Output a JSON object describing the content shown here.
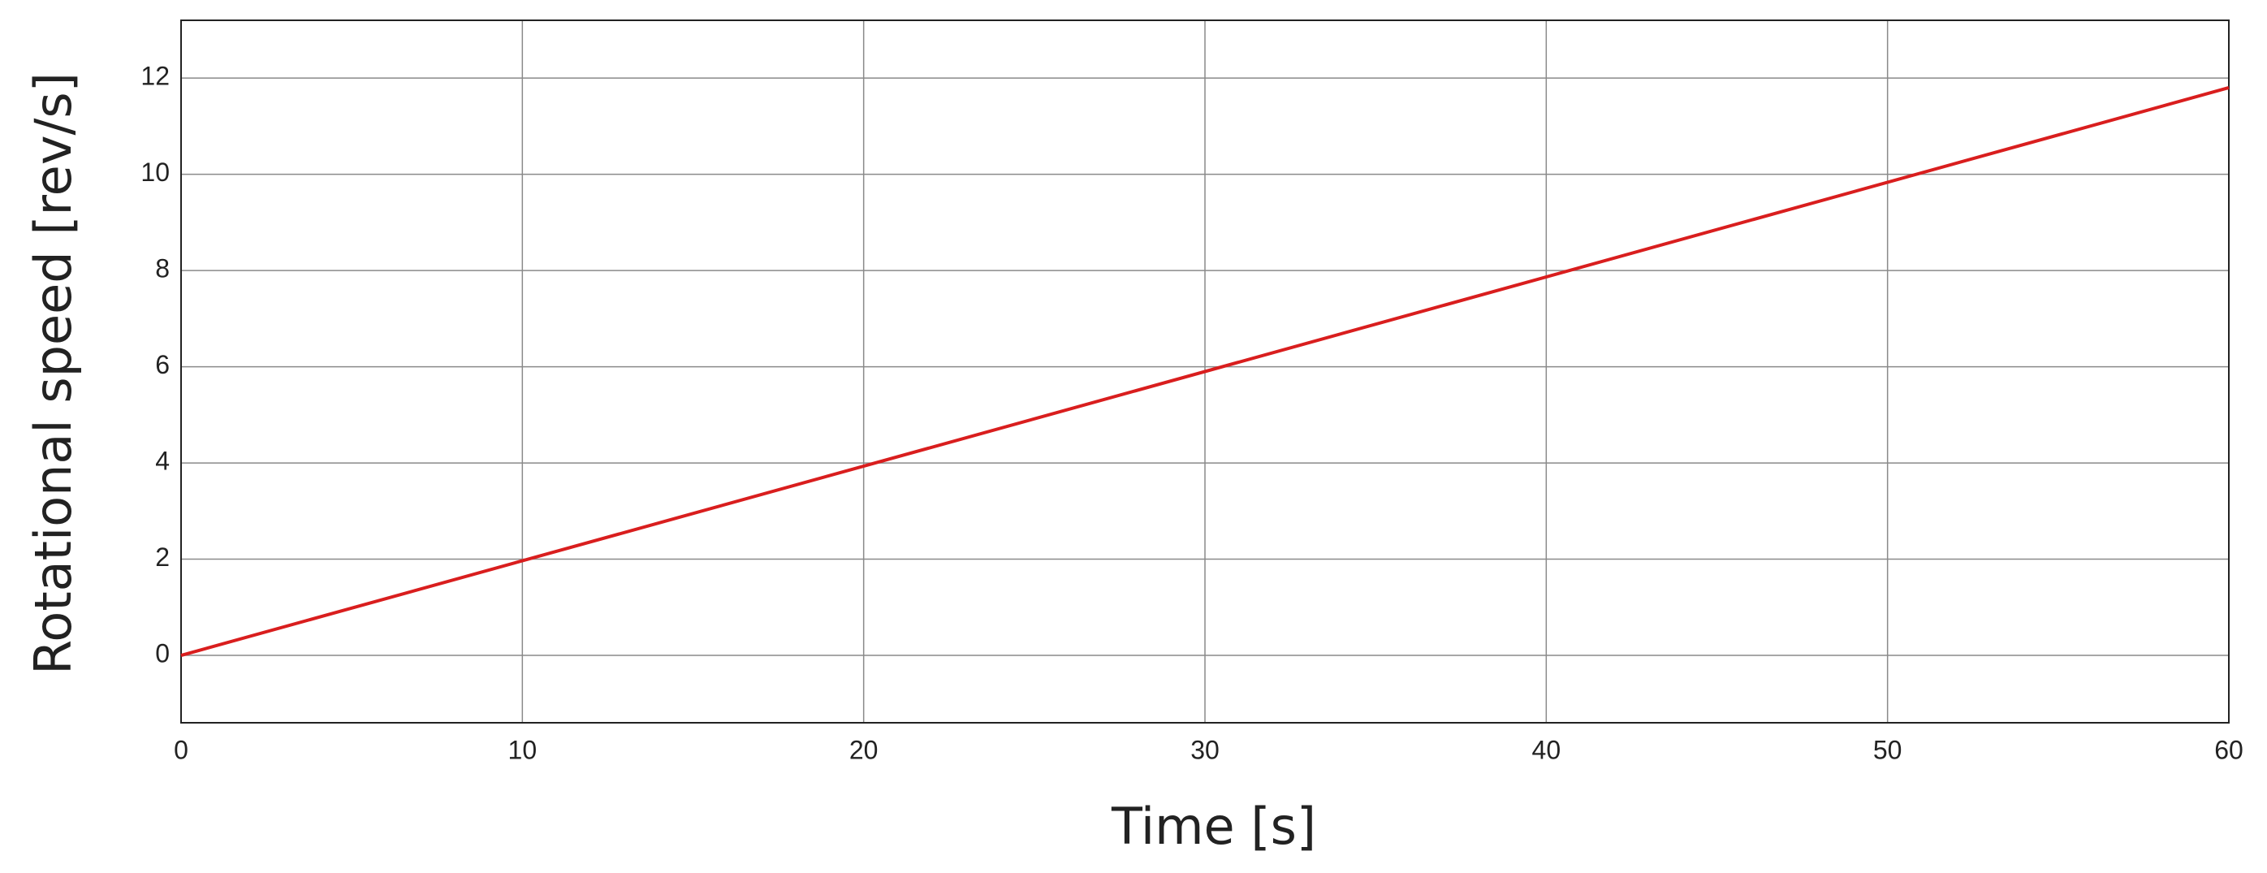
{
  "chart_data": {
    "type": "line",
    "x_label": "Time [s]",
    "y_label": "Rotational speed [rev/s]",
    "x": [
      0,
      60
    ],
    "series": [
      {
        "color": "#d91e1e",
        "values": [
          0,
          11.8
        ]
      }
    ],
    "xlim": [
      0,
      60
    ],
    "xticks": [
      0,
      10,
      20,
      30,
      40,
      50,
      60
    ],
    "ylim": [
      -1.4,
      13.2
    ],
    "yticks": [
      0,
      2,
      4,
      6,
      8,
      10,
      12
    ],
    "grid": true
  }
}
